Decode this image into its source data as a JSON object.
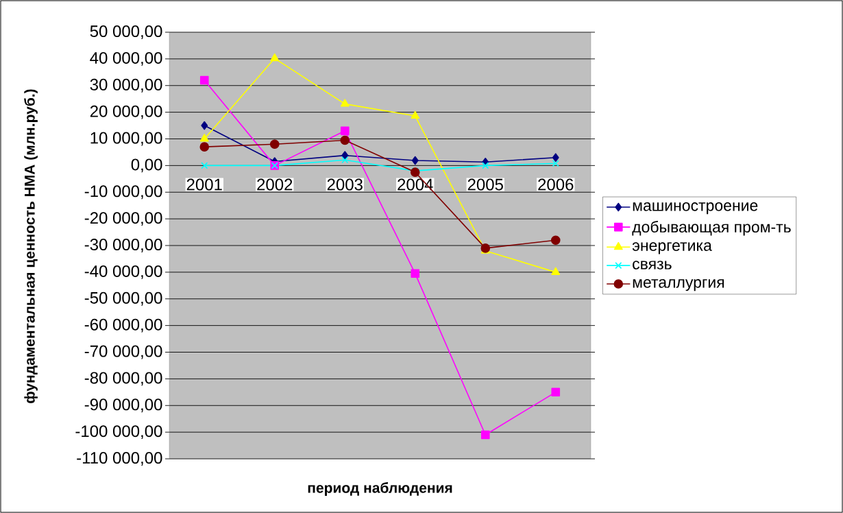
{
  "chart_data": {
    "type": "line",
    "xlabel": "период наблюдения",
    "ylabel": "фундаментальная ценность НМА (млн.руб.)",
    "categories": [
      "2001",
      "2002",
      "2003",
      "2004",
      "2005",
      "2006"
    ],
    "series": [
      {
        "name": "машиностроение",
        "color": "#000080",
        "marker": "diamond",
        "values": [
          15000,
          1500,
          3800,
          1900,
          1300,
          3000
        ]
      },
      {
        "name": "добывающая пром-ть",
        "color": "#ff00ff",
        "marker": "square",
        "values": [
          32000,
          0,
          13000,
          -40500,
          -101000,
          -85000
        ]
      },
      {
        "name": "энергетика",
        "color": "#ffff00",
        "marker": "triangle",
        "values": [
          10000,
          40200,
          23100,
          18600,
          -32000,
          -40000
        ]
      },
      {
        "name": "связь",
        "color": "#00ffff",
        "marker": "cross",
        "values": [
          0,
          0,
          2100,
          -2000,
          0,
          800
        ]
      },
      {
        "name": "металлургия",
        "color": "#800000",
        "marker": "circle",
        "values": [
          7000,
          8000,
          9500,
          -2500,
          -31000,
          -28000
        ]
      }
    ],
    "ylim": [
      -110000,
      50000
    ],
    "yticks": [
      {
        "value": -110000,
        "label": "-110 000,00"
      },
      {
        "value": -100000,
        "label": "-100 000,00"
      },
      {
        "value": -90000,
        "label": "-90 000,00"
      },
      {
        "value": -80000,
        "label": "-80 000,00"
      },
      {
        "value": -70000,
        "label": "-70 000,00"
      },
      {
        "value": -60000,
        "label": "-60 000,00"
      },
      {
        "value": -50000,
        "label": "-50 000,00"
      },
      {
        "value": -40000,
        "label": "-40 000,00"
      },
      {
        "value": -30000,
        "label": "-30 000,00"
      },
      {
        "value": -20000,
        "label": "-20 000,00"
      },
      {
        "value": -10000,
        "label": "-10 000,00"
      },
      {
        "value": 0,
        "label": "0,00"
      },
      {
        "value": 10000,
        "label": "10 000,00"
      },
      {
        "value": 20000,
        "label": "20 000,00"
      },
      {
        "value": 30000,
        "label": "30 000,00"
      },
      {
        "value": 40000,
        "label": "40 000,00"
      },
      {
        "value": 50000,
        "label": "50 000,00"
      }
    ],
    "grid": "y",
    "legend": "right",
    "line_style": "solid"
  }
}
